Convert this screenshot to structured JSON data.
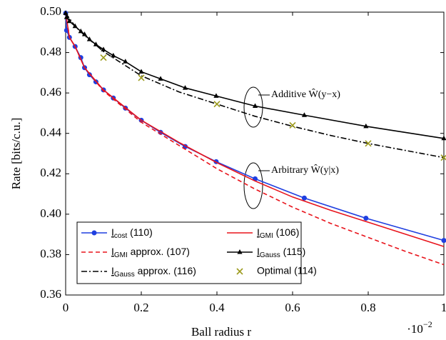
{
  "chart_data": {
    "type": "line",
    "xlabel": "Ball radius r",
    "ylabel": "Rate [bits/c.u.]",
    "x_multiplier": "·10^−2",
    "xlim": [
      0,
      1
    ],
    "ylim": [
      0.36,
      0.5
    ],
    "xticks": [
      0,
      0.2,
      0.4,
      0.6,
      0.8,
      1
    ],
    "yticks": [
      0.36,
      0.38,
      {
        "value": 0.4,
        "label": "0.40"
      },
      0.42,
      0.44,
      0.46,
      0.48,
      {
        "value": 0.5,
        "label": "0.50"
      }
    ],
    "grid": false,
    "legend": "lower left",
    "annotations": [
      "Additive Ŵ(y−x)",
      "Arbitrary Ŵ(y|x)"
    ],
    "series": [
      {
        "name": "I_cost (110)",
        "color": "#1f3fe0",
        "line": "solid",
        "marker": "circle",
        "x": [
          0,
          0.0025,
          0.01,
          0.025,
          0.04,
          0.05,
          0.063,
          0.08,
          0.1,
          0.126,
          0.158,
          0.2,
          0.251,
          0.316,
          0.398,
          0.501,
          0.631,
          0.794,
          1
        ],
        "values": [
          0.4995,
          0.491,
          0.4875,
          0.483,
          0.4775,
          0.4725,
          0.469,
          0.4655,
          0.4615,
          0.4575,
          0.4525,
          0.4465,
          0.4405,
          0.4335,
          0.426,
          0.4175,
          0.408,
          0.398,
          0.387
        ]
      },
      {
        "name": "I_GMI (106)",
        "color": "#e8131b",
        "line": "solid",
        "marker": "none",
        "x": [
          0,
          0.01,
          0.025,
          0.05,
          0.1,
          0.2,
          0.3,
          0.4,
          0.5,
          0.6,
          0.7,
          0.8,
          0.9,
          1
        ],
        "values": [
          0.4995,
          0.4875,
          0.483,
          0.4725,
          0.4615,
          0.4465,
          0.4355,
          0.4255,
          0.4165,
          0.4085,
          0.402,
          0.396,
          0.39,
          0.384
        ]
      },
      {
        "name": "I_GMI approx. (107)",
        "color": "#e8131b",
        "line": "dashed",
        "marker": "none",
        "x": [
          0,
          0.01,
          0.025,
          0.05,
          0.1,
          0.2,
          0.3,
          0.4,
          0.5,
          0.6,
          0.7,
          0.8,
          0.9,
          1
        ],
        "values": [
          0.4995,
          0.4875,
          0.483,
          0.4725,
          0.461,
          0.4455,
          0.434,
          0.4225,
          0.4125,
          0.4035,
          0.3955,
          0.3885,
          0.3815,
          0.375
        ]
      },
      {
        "name": "I_Gauss (115)",
        "color": "#000000",
        "line": "solid",
        "marker": "triangle",
        "x": [
          0,
          0.0025,
          0.01,
          0.025,
          0.04,
          0.05,
          0.063,
          0.08,
          0.1,
          0.126,
          0.158,
          0.2,
          0.251,
          0.316,
          0.398,
          0.501,
          0.631,
          0.794,
          1
        ],
        "values": [
          0.4995,
          0.4975,
          0.4955,
          0.493,
          0.4905,
          0.489,
          0.4865,
          0.484,
          0.4815,
          0.4785,
          0.4755,
          0.4705,
          0.467,
          0.4625,
          0.4585,
          0.4535,
          0.449,
          0.4435,
          0.4375
        ]
      },
      {
        "name": "I_Gauss approx. (116)",
        "color": "#000000",
        "line": "dashdot",
        "marker": "none",
        "x": [
          0,
          0.025,
          0.05,
          0.1,
          0.2,
          0.3,
          0.4,
          0.5,
          0.6,
          0.7,
          0.8,
          0.9,
          1
        ],
        "values": [
          0.4995,
          0.493,
          0.4885,
          0.4805,
          0.4685,
          0.4605,
          0.4545,
          0.4485,
          0.4435,
          0.439,
          0.435,
          0.4315,
          0.428
        ]
      },
      {
        "name": "Optimal (114)",
        "color": "#9c9a1c",
        "line": "none",
        "marker": "x",
        "x": [
          0.1,
          0.2,
          0.4,
          0.6,
          0.8,
          1
        ],
        "values": [
          0.4775,
          0.4675,
          0.4545,
          0.444,
          0.435,
          0.428
        ]
      }
    ]
  }
}
